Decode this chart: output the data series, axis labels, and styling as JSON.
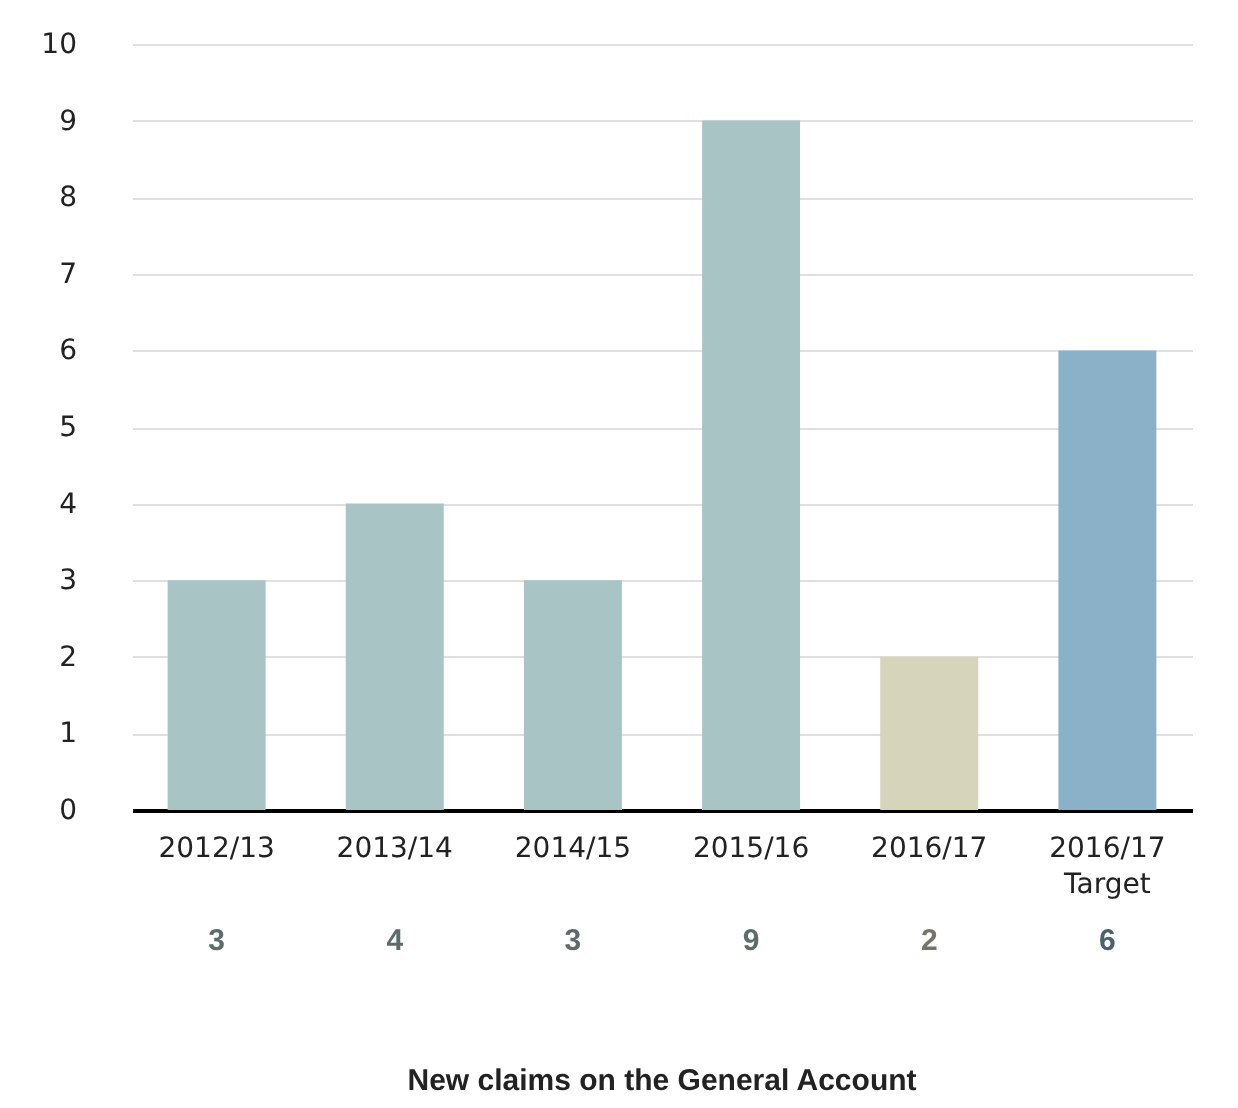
{
  "chart_data": {
    "type": "bar",
    "title": "New claims on the General Account",
    "categories": [
      "2012/13",
      "2013/14",
      "2014/15",
      "2015/16",
      "2016/17",
      "2016/17\nTarget"
    ],
    "values": [
      3,
      4,
      3,
      9,
      2,
      6
    ],
    "colors": [
      "#a8c4c4",
      "#a8c4c4",
      "#a8c4c4",
      "#a8c4c4",
      "#d6d5bb",
      "#8bb1c9"
    ],
    "ylim": [
      0,
      10
    ],
    "yticks": [
      0,
      1,
      2,
      3,
      4,
      5,
      6,
      7,
      8,
      9,
      10
    ],
    "grid": "y",
    "data_labels": true
  }
}
